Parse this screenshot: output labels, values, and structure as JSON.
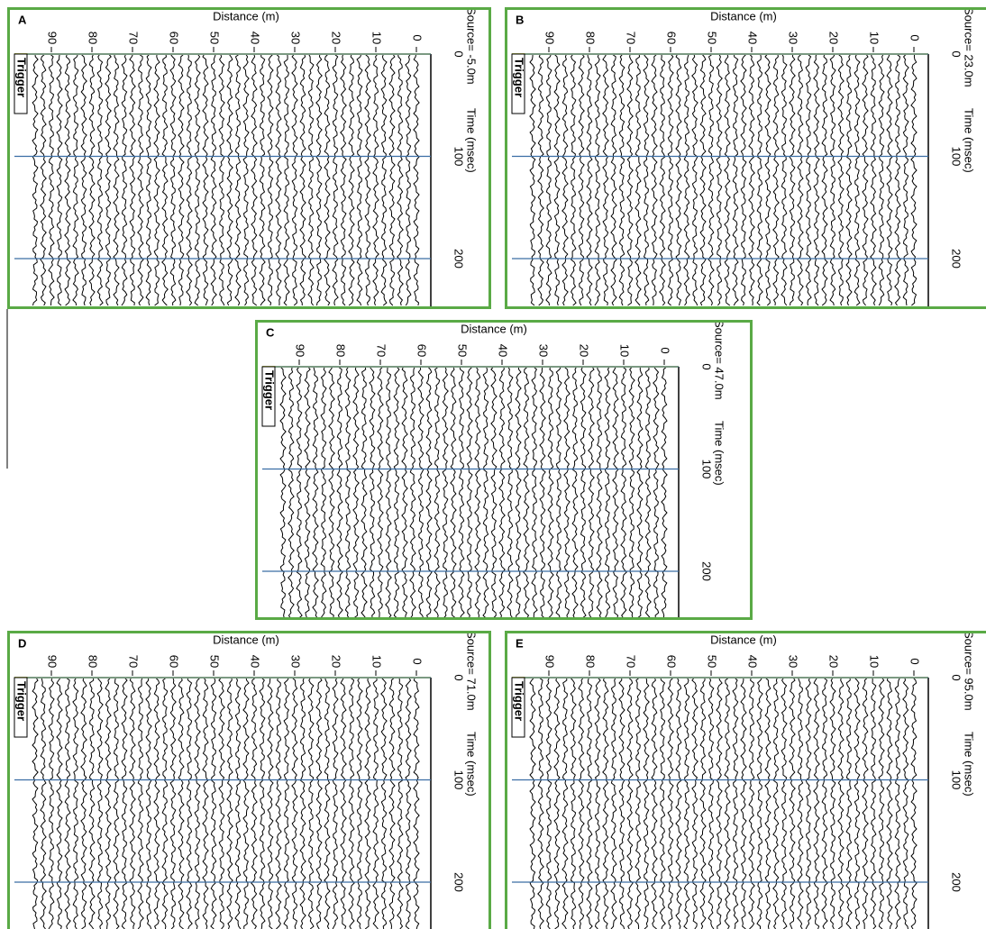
{
  "panels": [
    {
      "label": "A",
      "x_title": "Distance (m)",
      "source": "Source= -5.0m",
      "y_title": "Time (msec)",
      "trigger": "Trigger",
      "xticks": [
        90,
        80,
        70,
        60,
        50,
        40,
        30,
        20,
        10,
        0
      ],
      "yticks": [
        0,
        100,
        200
      ]
    },
    {
      "label": "B",
      "x_title": "Distance (m)",
      "source": "Source= 23.0m",
      "y_title": "Time (msec)",
      "trigger": "Trigger",
      "xticks": [
        90,
        80,
        70,
        60,
        50,
        40,
        30,
        20,
        10,
        0
      ],
      "yticks": [
        0,
        100,
        200
      ]
    },
    {
      "label": "C",
      "x_title": "Distance (m)",
      "source": "Source= 47.0m",
      "y_title": "Time (msec)",
      "trigger": "Trigger",
      "xticks": [
        90,
        80,
        70,
        60,
        50,
        40,
        30,
        20,
        10,
        0
      ],
      "yticks": [
        0,
        100,
        200
      ]
    },
    {
      "label": "D",
      "x_title": "Distance (m)",
      "source": "Source= 71.0m",
      "y_title": "Time (msec)",
      "trigger": "Trigger",
      "xticks": [
        90,
        80,
        70,
        60,
        50,
        40,
        30,
        20,
        10,
        0
      ],
      "yticks": [
        0,
        100,
        200
      ]
    },
    {
      "label": "E",
      "x_title": "Distance (m)",
      "source": "Source= 95.0m",
      "y_title": "Time (msec)",
      "trigger": "Trigger",
      "xticks": [
        90,
        80,
        70,
        60,
        50,
        40,
        30,
        20,
        10,
        0
      ],
      "yticks": [
        0,
        100,
        200
      ]
    }
  ]
}
